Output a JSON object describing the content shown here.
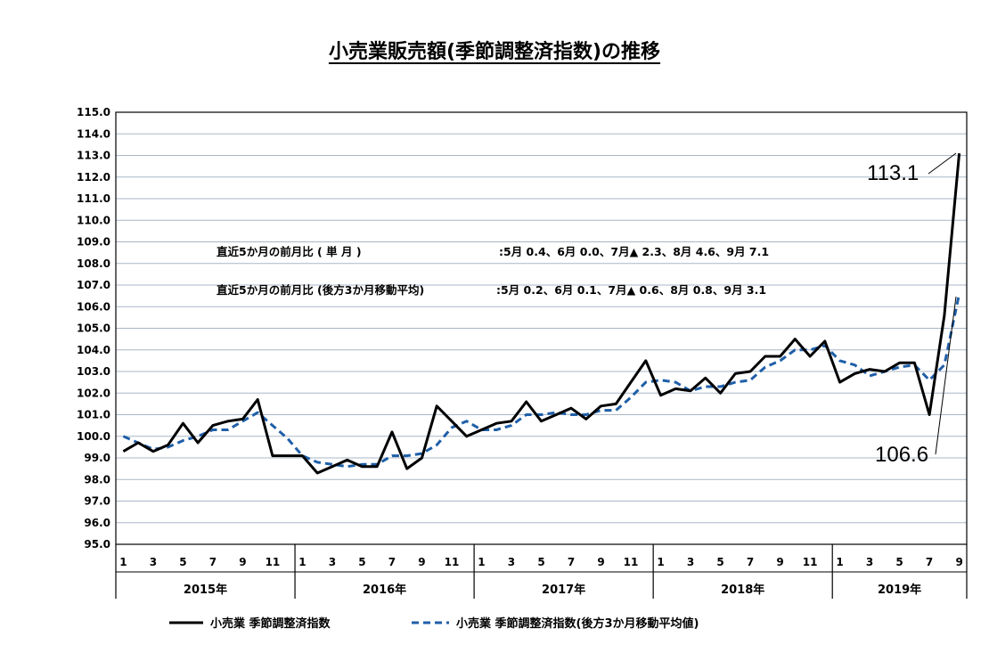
{
  "chart_data": {
    "type": "line",
    "title": "小売業販売額(季節調整済指数)の推移",
    "ylim": [
      95.0,
      115.0
    ],
    "ytick_step": 1.0,
    "grid": true,
    "legend_position": "bottom",
    "years": [
      "2015年",
      "2016年",
      "2017年",
      "2018年",
      "2019年"
    ],
    "month_ticks": [
      "1",
      "3",
      "5",
      "7",
      "9",
      "11"
    ],
    "month_ticks_last_year": [
      "1",
      "3",
      "5",
      "7",
      "9"
    ],
    "x_start": "2015-01",
    "x_end": "2019-09",
    "series": [
      {
        "name": "小売業 季節調整済指数",
        "color": "#000000",
        "style": "solid",
        "values": [
          99.3,
          99.7,
          99.3,
          99.6,
          100.6,
          99.7,
          100.5,
          100.7,
          100.8,
          101.7,
          99.1,
          99.1,
          99.1,
          98.3,
          98.6,
          98.9,
          98.6,
          98.6,
          100.2,
          98.5,
          99.0,
          101.4,
          100.7,
          100.0,
          100.3,
          100.6,
          100.7,
          101.6,
          100.7,
          101.0,
          101.3,
          100.8,
          101.4,
          101.5,
          102.5,
          103.5,
          101.9,
          102.2,
          102.1,
          102.7,
          102.0,
          102.9,
          103.0,
          103.7,
          103.7,
          104.5,
          103.7,
          104.4,
          102.5,
          102.9,
          103.1,
          103.0,
          103.4,
          103.4,
          101.0,
          105.6,
          113.1
        ]
      },
      {
        "name": "小売業 季節調整済指数(後方3か月移動平均値)",
        "color": "#1f5fa8",
        "style": "dashed",
        "values": [
          100.0,
          99.7,
          99.4,
          99.5,
          99.8,
          100.0,
          100.3,
          100.3,
          100.7,
          101.1,
          100.5,
          99.9,
          99.1,
          98.8,
          98.7,
          98.6,
          98.7,
          98.7,
          99.1,
          99.1,
          99.2,
          99.6,
          100.4,
          100.7,
          100.3,
          100.3,
          100.5,
          101.0,
          101.0,
          101.1,
          101.0,
          101.0,
          101.2,
          101.2,
          101.8,
          102.5,
          102.6,
          102.5,
          102.1,
          102.3,
          102.3,
          102.5,
          102.6,
          103.2,
          103.5,
          104.0,
          104.0,
          104.2,
          103.5,
          103.3,
          102.8,
          103.0,
          103.2,
          103.3,
          102.6,
          103.3,
          106.6
        ]
      }
    ],
    "annotations": {
      "single_label": "直近5か月の前月比  (  単   月  )",
      "single_values": ":5月 0.4、6月 0.0、7月▲ 2.3、8月 4.6、9月 7.1",
      "avg_label": "直近5か月の前月比 (後方3か月移動平均)",
      "avg_values": ":5月  0.2、6月 0.1、7月▲ 0.6、8月 0.8、9月 3.1",
      "callout_single": "113.1",
      "callout_avg": "106.6"
    }
  }
}
